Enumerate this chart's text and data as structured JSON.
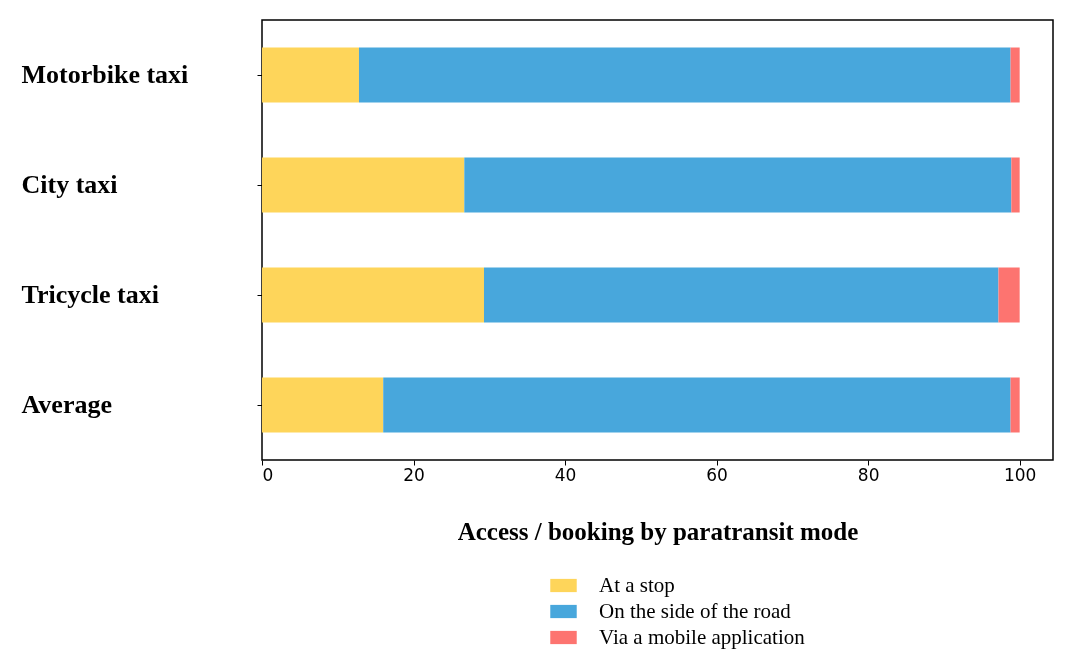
{
  "chart_data": {
    "type": "bar",
    "orientation": "horizontal",
    "stacked": true,
    "xlabel": "Access / booking by paratransit mode",
    "categories": [
      "Motorbike taxi",
      "City taxi",
      "Tricycle taxi",
      "Average"
    ],
    "series": [
      {
        "name": "At a stop",
        "color": "#fed55a",
        "values": [
          12.8,
          26.7,
          29.3,
          16.0
        ]
      },
      {
        "name": "On the side of the road",
        "color": "#48a7dc",
        "values": [
          86.0,
          72.2,
          67.9,
          82.8
        ]
      },
      {
        "name": "Via a mobile application",
        "color": "#fd7470",
        "values": [
          1.2,
          1.1,
          2.8,
          1.2
        ]
      }
    ],
    "xlim": [
      0,
      104.4
    ],
    "xticks": [
      0,
      20,
      40,
      60,
      80,
      100
    ],
    "grid": false,
    "legend": "bottom"
  }
}
